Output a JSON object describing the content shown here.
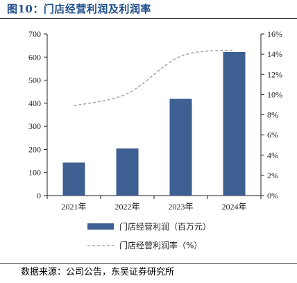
{
  "header": {
    "title": "图10：门店经营利润及利润率"
  },
  "footer": {
    "source": "数据来源：公司公告，东吴证券研究所"
  },
  "colors": {
    "bar": "#3d5f91",
    "line": "#a6a6a6",
    "title": "#1f4e8c"
  },
  "chart_data": {
    "type": "bar",
    "title": "",
    "categories": [
      "2021年",
      "2022年",
      "2023年",
      "2024年"
    ],
    "series": [
      {
        "name": "门店经营利润（百万元）",
        "type": "bar",
        "axis": "left",
        "values": [
          143,
          204,
          419,
          622
        ]
      },
      {
        "name": "门店经营利润率（%）",
        "type": "line",
        "axis": "right",
        "style": "dashed",
        "values": [
          8.9,
          10.1,
          13.8,
          14.4
        ]
      }
    ],
    "y_left": {
      "min": 0,
      "max": 700,
      "step": 100,
      "ticks": [
        "0",
        "100",
        "200",
        "300",
        "400",
        "500",
        "600",
        "700"
      ]
    },
    "y_right": {
      "min": 0,
      "max": 16,
      "step": 2,
      "ticks": [
        "0%",
        "2%",
        "4%",
        "6%",
        "8%",
        "10%",
        "12%",
        "14%",
        "16%"
      ]
    },
    "grid": false,
    "legend_position": "bottom"
  }
}
